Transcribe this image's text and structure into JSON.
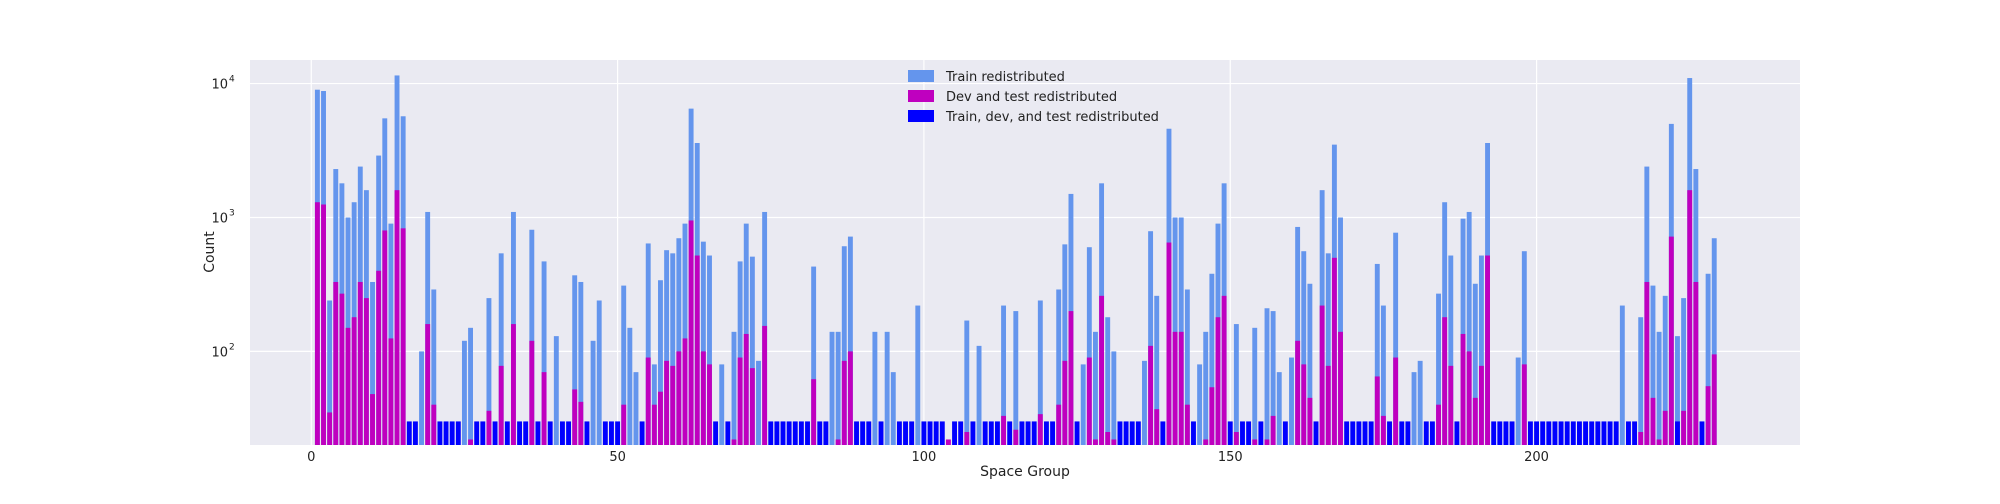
{
  "chart_data": {
    "type": "bar",
    "xlabel": "Space Group",
    "ylabel": "Count",
    "yscale": "log",
    "xlim": [
      -10,
      243
    ],
    "ylim": [
      20,
      15000
    ],
    "xticks": [
      0,
      50,
      100,
      150,
      200
    ],
    "yticks": [
      {
        "value": 100,
        "base": "10",
        "exp": "2"
      },
      {
        "value": 1000,
        "base": "10",
        "exp": "3"
      },
      {
        "value": 10000,
        "base": "10",
        "exp": "4"
      }
    ],
    "grid": true,
    "legend_position": "upper center",
    "series": [
      {
        "name": "Train redistributed",
        "color": "#6495ed",
        "points": [
          [
            1,
            9000
          ],
          [
            2,
            8800
          ],
          [
            3,
            240
          ],
          [
            4,
            2300
          ],
          [
            5,
            1800
          ],
          [
            6,
            1000
          ],
          [
            7,
            1300
          ],
          [
            8,
            2400
          ],
          [
            9,
            1600
          ],
          [
            10,
            330
          ],
          [
            11,
            2900
          ],
          [
            12,
            5500
          ],
          [
            13,
            900
          ],
          [
            14,
            11500
          ],
          [
            15,
            5700
          ],
          [
            18,
            100
          ],
          [
            19,
            1100
          ],
          [
            20,
            290
          ],
          [
            25,
            120
          ],
          [
            26,
            150
          ],
          [
            29,
            250
          ],
          [
            31,
            540
          ],
          [
            33,
            1100
          ],
          [
            36,
            810
          ],
          [
            38,
            470
          ],
          [
            40,
            130
          ],
          [
            43,
            370
          ],
          [
            44,
            330
          ],
          [
            46,
            120
          ],
          [
            47,
            240
          ],
          [
            51,
            310
          ],
          [
            52,
            150
          ],
          [
            53,
            70
          ],
          [
            55,
            640
          ],
          [
            56,
            80
          ],
          [
            57,
            340
          ],
          [
            58,
            570
          ],
          [
            59,
            540
          ],
          [
            60,
            700
          ],
          [
            61,
            900
          ],
          [
            62,
            6500
          ],
          [
            63,
            3600
          ],
          [
            64,
            660
          ],
          [
            65,
            520
          ],
          [
            67,
            80
          ],
          [
            69,
            140
          ],
          [
            70,
            470
          ],
          [
            71,
            900
          ],
          [
            72,
            510
          ],
          [
            73,
            85
          ],
          [
            74,
            1100
          ],
          [
            82,
            430
          ],
          [
            85,
            140
          ],
          [
            86,
            140
          ],
          [
            87,
            610
          ],
          [
            88,
            720
          ],
          [
            92,
            140
          ],
          [
            94,
            140
          ],
          [
            95,
            70
          ],
          [
            99,
            220
          ],
          [
            107,
            170
          ],
          [
            109,
            110
          ],
          [
            113,
            220
          ],
          [
            115,
            200
          ],
          [
            119,
            240
          ],
          [
            122,
            290
          ],
          [
            123,
            630
          ],
          [
            124,
            1500
          ],
          [
            126,
            80
          ],
          [
            127,
            600
          ],
          [
            128,
            140
          ],
          [
            129,
            1800
          ],
          [
            130,
            180
          ],
          [
            131,
            100
          ],
          [
            136,
            85
          ],
          [
            137,
            790
          ],
          [
            138,
            260
          ],
          [
            140,
            4600
          ],
          [
            141,
            1000
          ],
          [
            142,
            1000
          ],
          [
            143,
            290
          ],
          [
            145,
            80
          ],
          [
            146,
            140
          ],
          [
            147,
            380
          ],
          [
            148,
            900
          ],
          [
            149,
            1800
          ],
          [
            151,
            160
          ],
          [
            154,
            150
          ],
          [
            156,
            210
          ],
          [
            157,
            200
          ],
          [
            158,
            70
          ],
          [
            160,
            90
          ],
          [
            161,
            850
          ],
          [
            162,
            560
          ],
          [
            163,
            320
          ],
          [
            165,
            1600
          ],
          [
            166,
            540
          ],
          [
            167,
            3500
          ],
          [
            168,
            1000
          ],
          [
            174,
            450
          ],
          [
            175,
            220
          ],
          [
            177,
            770
          ],
          [
            180,
            70
          ],
          [
            181,
            85
          ],
          [
            184,
            270
          ],
          [
            185,
            1300
          ],
          [
            186,
            520
          ],
          [
            188,
            980
          ],
          [
            189,
            1100
          ],
          [
            190,
            320
          ],
          [
            191,
            520
          ],
          [
            192,
            3600
          ],
          [
            197,
            90
          ],
          [
            198,
            560
          ],
          [
            214,
            220
          ],
          [
            217,
            180
          ],
          [
            218,
            2400
          ],
          [
            219,
            310
          ],
          [
            220,
            140
          ],
          [
            221,
            260
          ],
          [
            222,
            5000
          ],
          [
            223,
            130
          ],
          [
            224,
            250
          ],
          [
            225,
            11000
          ],
          [
            226,
            2300
          ],
          [
            228,
            380
          ],
          [
            229,
            700
          ]
        ]
      },
      {
        "name": "Dev and test redistributed",
        "color": "#bf00bf",
        "points": [
          [
            1,
            1300
          ],
          [
            2,
            1250
          ],
          [
            3,
            35
          ],
          [
            4,
            330
          ],
          [
            5,
            270
          ],
          [
            6,
            150
          ],
          [
            7,
            180
          ],
          [
            8,
            330
          ],
          [
            9,
            250
          ],
          [
            10,
            48
          ],
          [
            11,
            400
          ],
          [
            12,
            800
          ],
          [
            13,
            125
          ],
          [
            14,
            1600
          ],
          [
            15,
            830
          ],
          [
            19,
            160
          ],
          [
            20,
            40
          ],
          [
            26,
            22
          ],
          [
            29,
            36
          ],
          [
            31,
            78
          ],
          [
            33,
            160
          ],
          [
            36,
            120
          ],
          [
            38,
            70
          ],
          [
            43,
            52
          ],
          [
            44,
            42
          ],
          [
            51,
            40
          ],
          [
            55,
            90
          ],
          [
            56,
            40
          ],
          [
            57,
            50
          ],
          [
            58,
            85
          ],
          [
            59,
            78
          ],
          [
            60,
            100
          ],
          [
            61,
            125
          ],
          [
            62,
            950
          ],
          [
            63,
            520
          ],
          [
            64,
            100
          ],
          [
            65,
            80
          ],
          [
            69,
            22
          ],
          [
            70,
            90
          ],
          [
            71,
            135
          ],
          [
            72,
            75
          ],
          [
            74,
            155
          ],
          [
            82,
            62
          ],
          [
            86,
            22
          ],
          [
            87,
            85
          ],
          [
            88,
            100
          ],
          [
            104,
            22
          ],
          [
            107,
            25
          ],
          [
            113,
            33
          ],
          [
            115,
            26
          ],
          [
            119,
            34
          ],
          [
            122,
            40
          ],
          [
            123,
            85
          ],
          [
            124,
            200
          ],
          [
            127,
            90
          ],
          [
            128,
            22
          ],
          [
            129,
            260
          ],
          [
            130,
            25
          ],
          [
            131,
            22
          ],
          [
            137,
            110
          ],
          [
            138,
            37
          ],
          [
            140,
            650
          ],
          [
            141,
            140
          ],
          [
            142,
            140
          ],
          [
            143,
            40
          ],
          [
            146,
            22
          ],
          [
            147,
            54
          ],
          [
            148,
            180
          ],
          [
            149,
            260
          ],
          [
            151,
            25
          ],
          [
            154,
            22
          ],
          [
            156,
            22
          ],
          [
            157,
            33
          ],
          [
            161,
            120
          ],
          [
            162,
            80
          ],
          [
            163,
            45
          ],
          [
            165,
            220
          ],
          [
            166,
            78
          ],
          [
            167,
            500
          ],
          [
            168,
            140
          ],
          [
            174,
            65
          ],
          [
            175,
            33
          ],
          [
            177,
            90
          ],
          [
            184,
            40
          ],
          [
            185,
            180
          ],
          [
            186,
            78
          ],
          [
            188,
            135
          ],
          [
            189,
            100
          ],
          [
            190,
            45
          ],
          [
            191,
            78
          ],
          [
            192,
            520
          ],
          [
            198,
            80
          ],
          [
            217,
            25
          ],
          [
            218,
            330
          ],
          [
            219,
            45
          ],
          [
            220,
            22
          ],
          [
            221,
            36
          ],
          [
            222,
            720
          ],
          [
            224,
            36
          ],
          [
            225,
            1600
          ],
          [
            226,
            330
          ],
          [
            228,
            55
          ],
          [
            229,
            95
          ]
        ]
      },
      {
        "name": "Train, dev, and test redistributed",
        "color": "#0000ff",
        "points": [
          [
            16,
            30
          ],
          [
            17,
            30
          ],
          [
            21,
            30
          ],
          [
            22,
            30
          ],
          [
            23,
            30
          ],
          [
            24,
            30
          ],
          [
            27,
            30
          ],
          [
            28,
            30
          ],
          [
            30,
            30
          ],
          [
            32,
            30
          ],
          [
            34,
            30
          ],
          [
            35,
            30
          ],
          [
            37,
            30
          ],
          [
            39,
            30
          ],
          [
            41,
            30
          ],
          [
            42,
            30
          ],
          [
            45,
            30
          ],
          [
            48,
            30
          ],
          [
            49,
            30
          ],
          [
            50,
            30
          ],
          [
            54,
            30
          ],
          [
            66,
            30
          ],
          [
            68,
            30
          ],
          [
            75,
            30
          ],
          [
            76,
            30
          ],
          [
            77,
            30
          ],
          [
            78,
            30
          ],
          [
            79,
            30
          ],
          [
            80,
            30
          ],
          [
            81,
            30
          ],
          [
            83,
            30
          ],
          [
            84,
            30
          ],
          [
            89,
            30
          ],
          [
            90,
            30
          ],
          [
            91,
            30
          ],
          [
            93,
            30
          ],
          [
            96,
            30
          ],
          [
            97,
            30
          ],
          [
            98,
            30
          ],
          [
            100,
            30
          ],
          [
            101,
            30
          ],
          [
            102,
            30
          ],
          [
            103,
            30
          ],
          [
            105,
            30
          ],
          [
            106,
            30
          ],
          [
            108,
            30
          ],
          [
            110,
            30
          ],
          [
            111,
            30
          ],
          [
            112,
            30
          ],
          [
            114,
            30
          ],
          [
            116,
            30
          ],
          [
            117,
            30
          ],
          [
            118,
            30
          ],
          [
            120,
            30
          ],
          [
            121,
            30
          ],
          [
            125,
            30
          ],
          [
            132,
            30
          ],
          [
            133,
            30
          ],
          [
            134,
            30
          ],
          [
            135,
            30
          ],
          [
            139,
            30
          ],
          [
            144,
            30
          ],
          [
            150,
            30
          ],
          [
            152,
            30
          ],
          [
            153,
            30
          ],
          [
            155,
            30
          ],
          [
            159,
            30
          ],
          [
            164,
            30
          ],
          [
            169,
            30
          ],
          [
            170,
            30
          ],
          [
            171,
            30
          ],
          [
            172,
            30
          ],
          [
            173,
            30
          ],
          [
            176,
            30
          ],
          [
            178,
            30
          ],
          [
            179,
            30
          ],
          [
            182,
            30
          ],
          [
            183,
            30
          ],
          [
            187,
            30
          ],
          [
            193,
            30
          ],
          [
            194,
            30
          ],
          [
            195,
            30
          ],
          [
            196,
            30
          ],
          [
            199,
            30
          ],
          [
            200,
            30
          ],
          [
            201,
            30
          ],
          [
            202,
            30
          ],
          [
            203,
            30
          ],
          [
            204,
            30
          ],
          [
            205,
            30
          ],
          [
            206,
            30
          ],
          [
            207,
            30
          ],
          [
            208,
            30
          ],
          [
            209,
            30
          ],
          [
            210,
            30
          ],
          [
            211,
            30
          ],
          [
            212,
            30
          ],
          [
            213,
            30
          ],
          [
            215,
            30
          ],
          [
            216,
            30
          ],
          [
            223,
            30
          ],
          [
            227,
            30
          ]
        ]
      }
    ]
  }
}
